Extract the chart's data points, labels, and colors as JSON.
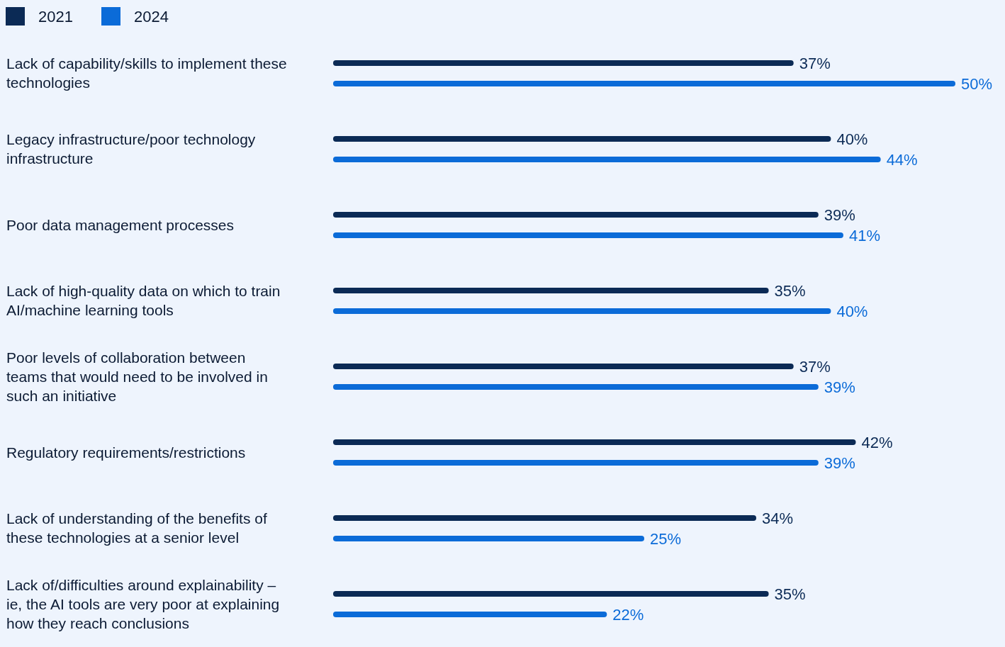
{
  "chart_data": {
    "type": "bar",
    "orientation": "horizontal",
    "legend": "top left",
    "categories": [
      "Lack of capability/skills to implement these technologies",
      "Legacy infrastructure/poor technology infrastructure",
      "Poor data management processes",
      "Lack of high-quality data on which to train AI/machine learning tools",
      "Poor levels of collaboration between teams that would need to be involved in such an initiative",
      "Regulatory requirements/restrictions",
      "Lack of understanding of the benefits of these technologies at a senior level",
      "Lack of/difficulties around explainability – ie, the AI tools are very poor at explaining how they reach conclusions"
    ],
    "series": [
      {
        "name": "2021",
        "color": "#0b2a55",
        "values": [
          37,
          40,
          39,
          35,
          37,
          42,
          34,
          35
        ],
        "value_labels": [
          "37%",
          "40%",
          "39%",
          "35%",
          "37%",
          "42%",
          "34%",
          "35%"
        ]
      },
      {
        "name": "2024",
        "color": "#0b6bd8",
        "values": [
          50,
          44,
          41,
          40,
          39,
          39,
          25,
          22
        ],
        "value_labels": [
          "50%",
          "44%",
          "41%",
          "40%",
          "39%",
          "39%",
          "25%",
          "22%"
        ]
      }
    ]
  }
}
